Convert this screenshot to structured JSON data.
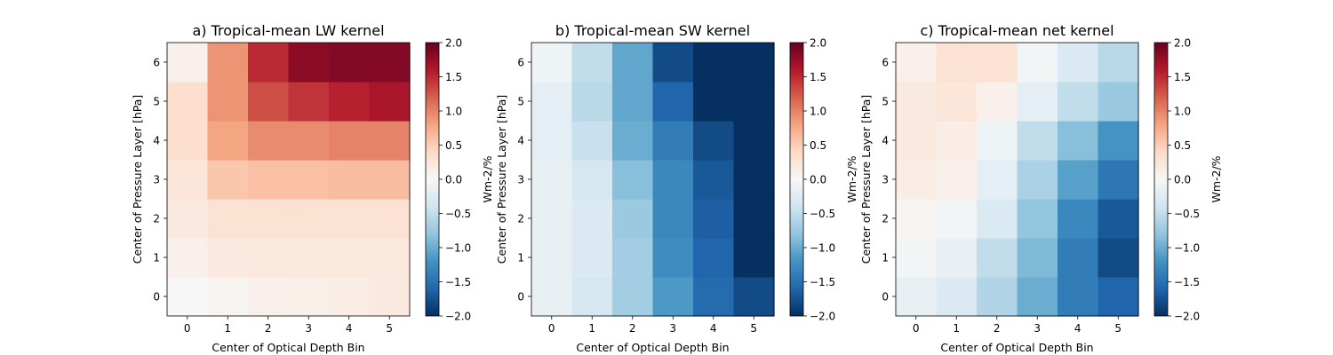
{
  "colorbar": {
    "min": -2.0,
    "max": 2.0,
    "ticks": [
      "2.0",
      "1.5",
      "1.0",
      "0.5",
      "0.0",
      "−0.5",
      "−1.0",
      "−1.5",
      "−2.0"
    ],
    "label": "Wm-2/%",
    "colormap": "RdBu_r"
  },
  "chart_data": [
    {
      "type": "heatmap",
      "title": "a) Tropical-mean LW kernel",
      "xlabel": "Center of Optical Depth Bin",
      "ylabel": "Center of Pressure Layer [hPa]",
      "x_ticks": [
        "0",
        "1",
        "2",
        "3",
        "4",
        "5"
      ],
      "y_ticks": [
        "0",
        "1",
        "2",
        "3",
        "4",
        "5",
        "6"
      ],
      "rows_bottom_to_top": [
        [
          0.0,
          0.05,
          0.1,
          0.12,
          0.15,
          0.2
        ],
        [
          0.1,
          0.2,
          0.22,
          0.22,
          0.22,
          0.22
        ],
        [
          0.2,
          0.3,
          0.3,
          0.3,
          0.3,
          0.3
        ],
        [
          0.25,
          0.55,
          0.6,
          0.6,
          0.62,
          0.62
        ],
        [
          0.35,
          0.8,
          0.95,
          0.95,
          1.0,
          1.0
        ],
        [
          0.35,
          0.9,
          1.3,
          1.45,
          1.55,
          1.65
        ],
        [
          0.1,
          0.9,
          1.5,
          1.8,
          1.85,
          1.85
        ]
      ]
    },
    {
      "type": "heatmap",
      "title": "b) Tropical-mean SW kernel",
      "xlabel": "Center of Optical Depth Bin",
      "ylabel": "Center of Pressure Layer [hPa]",
      "x_ticks": [
        "0",
        "1",
        "2",
        "3",
        "4",
        "5"
      ],
      "y_ticks": [
        "0",
        "1",
        "2",
        "3",
        "4",
        "5",
        "6"
      ],
      "rows_bottom_to_top": [
        [
          -0.15,
          -0.35,
          -0.7,
          -1.15,
          -1.55,
          -1.8
        ],
        [
          -0.15,
          -0.3,
          -0.7,
          -1.25,
          -1.6,
          -2.0
        ],
        [
          -0.15,
          -0.3,
          -0.75,
          -1.3,
          -1.65,
          -2.0
        ],
        [
          -0.15,
          -0.35,
          -0.85,
          -1.3,
          -1.7,
          -2.0
        ],
        [
          -0.2,
          -0.45,
          -1.0,
          -1.4,
          -1.8,
          -2.0
        ],
        [
          -0.2,
          -0.55,
          -1.05,
          -1.6,
          -2.0,
          -2.0
        ],
        [
          -0.1,
          -0.5,
          -1.05,
          -1.8,
          -2.0,
          -2.0
        ]
      ]
    },
    {
      "type": "heatmap",
      "title": "c) Tropical-mean net kernel",
      "xlabel": "Center of Optical Depth Bin",
      "ylabel": "Center of Pressure Layer [hPa]",
      "x_ticks": [
        "0",
        "1",
        "2",
        "3",
        "4",
        "5"
      ],
      "y_ticks": [
        "0",
        "1",
        "2",
        "3",
        "4",
        "5",
        "6"
      ],
      "rows_bottom_to_top": [
        [
          -0.15,
          -0.3,
          -0.6,
          -1.0,
          -1.4,
          -1.6
        ],
        [
          -0.05,
          -0.15,
          -0.5,
          -0.9,
          -1.4,
          -1.8
        ],
        [
          0.05,
          -0.05,
          -0.3,
          -0.8,
          -1.3,
          -1.7
        ],
        [
          0.15,
          0.1,
          -0.2,
          -0.65,
          -1.1,
          -1.45
        ],
        [
          0.2,
          0.15,
          -0.1,
          -0.5,
          -0.85,
          -1.2
        ],
        [
          0.2,
          0.25,
          0.1,
          -0.2,
          -0.5,
          -0.75
        ],
        [
          0.1,
          0.3,
          0.3,
          -0.05,
          -0.3,
          -0.55
        ]
      ]
    }
  ]
}
